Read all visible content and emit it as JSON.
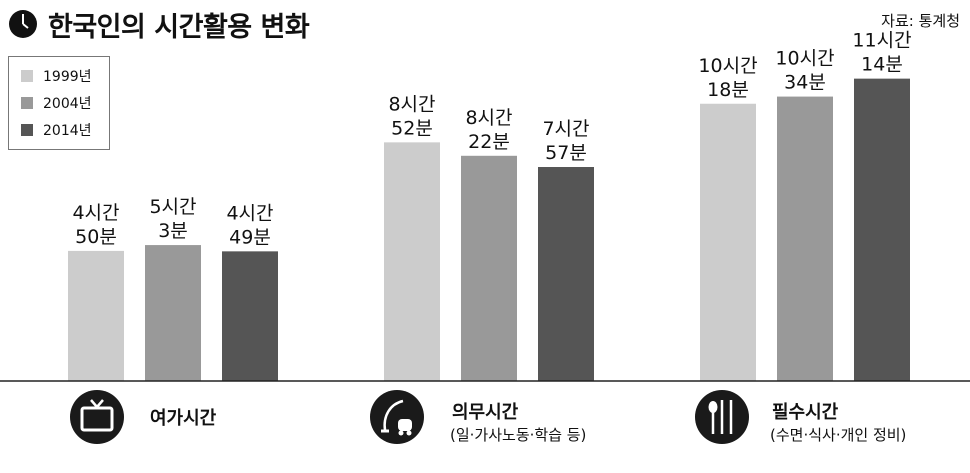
{
  "title": "한국인의 시간활용 변화",
  "source": "자료: 통계청",
  "colors": {
    "1999": "#cccccc",
    "2004": "#999999",
    "2014": "#555555",
    "icon": "#1a1a1a"
  },
  "chart_data": {
    "type": "bar",
    "title": "한국인의 시간활용 변화",
    "categories": [
      "여가시간",
      "의무시간",
      "필수시간"
    ],
    "category_subtitles": [
      "",
      "(일·가사노동·학습 등)",
      "(수면·식사·개인 정비)"
    ],
    "category_icons": [
      "tv-icon",
      "vacuum-cleaner-icon",
      "spoon-fork-knife-icon"
    ],
    "unit": "minutes",
    "legend": "top-left",
    "grid": false,
    "ylim": [
      0,
      720
    ],
    "series": [
      {
        "name": "1999년",
        "color": "#cccccc",
        "values": [
          290,
          532,
          618
        ],
        "labels": [
          [
            "4시간",
            "50분"
          ],
          [
            "8시간",
            "52분"
          ],
          [
            "10시간",
            "18분"
          ]
        ]
      },
      {
        "name": "2004년",
        "color": "#999999",
        "values": [
          303,
          502,
          634
        ],
        "labels": [
          [
            "5시간",
            "3분"
          ],
          [
            "8시간",
            "22분"
          ],
          [
            "10시간",
            "34분"
          ]
        ]
      },
      {
        "name": "2014년",
        "color": "#555555",
        "values": [
          289,
          477,
          674
        ],
        "labels": [
          [
            "4시간",
            "49분"
          ],
          [
            "7시간",
            "57분"
          ],
          [
            "11시간",
            "14분"
          ]
        ]
      }
    ]
  }
}
